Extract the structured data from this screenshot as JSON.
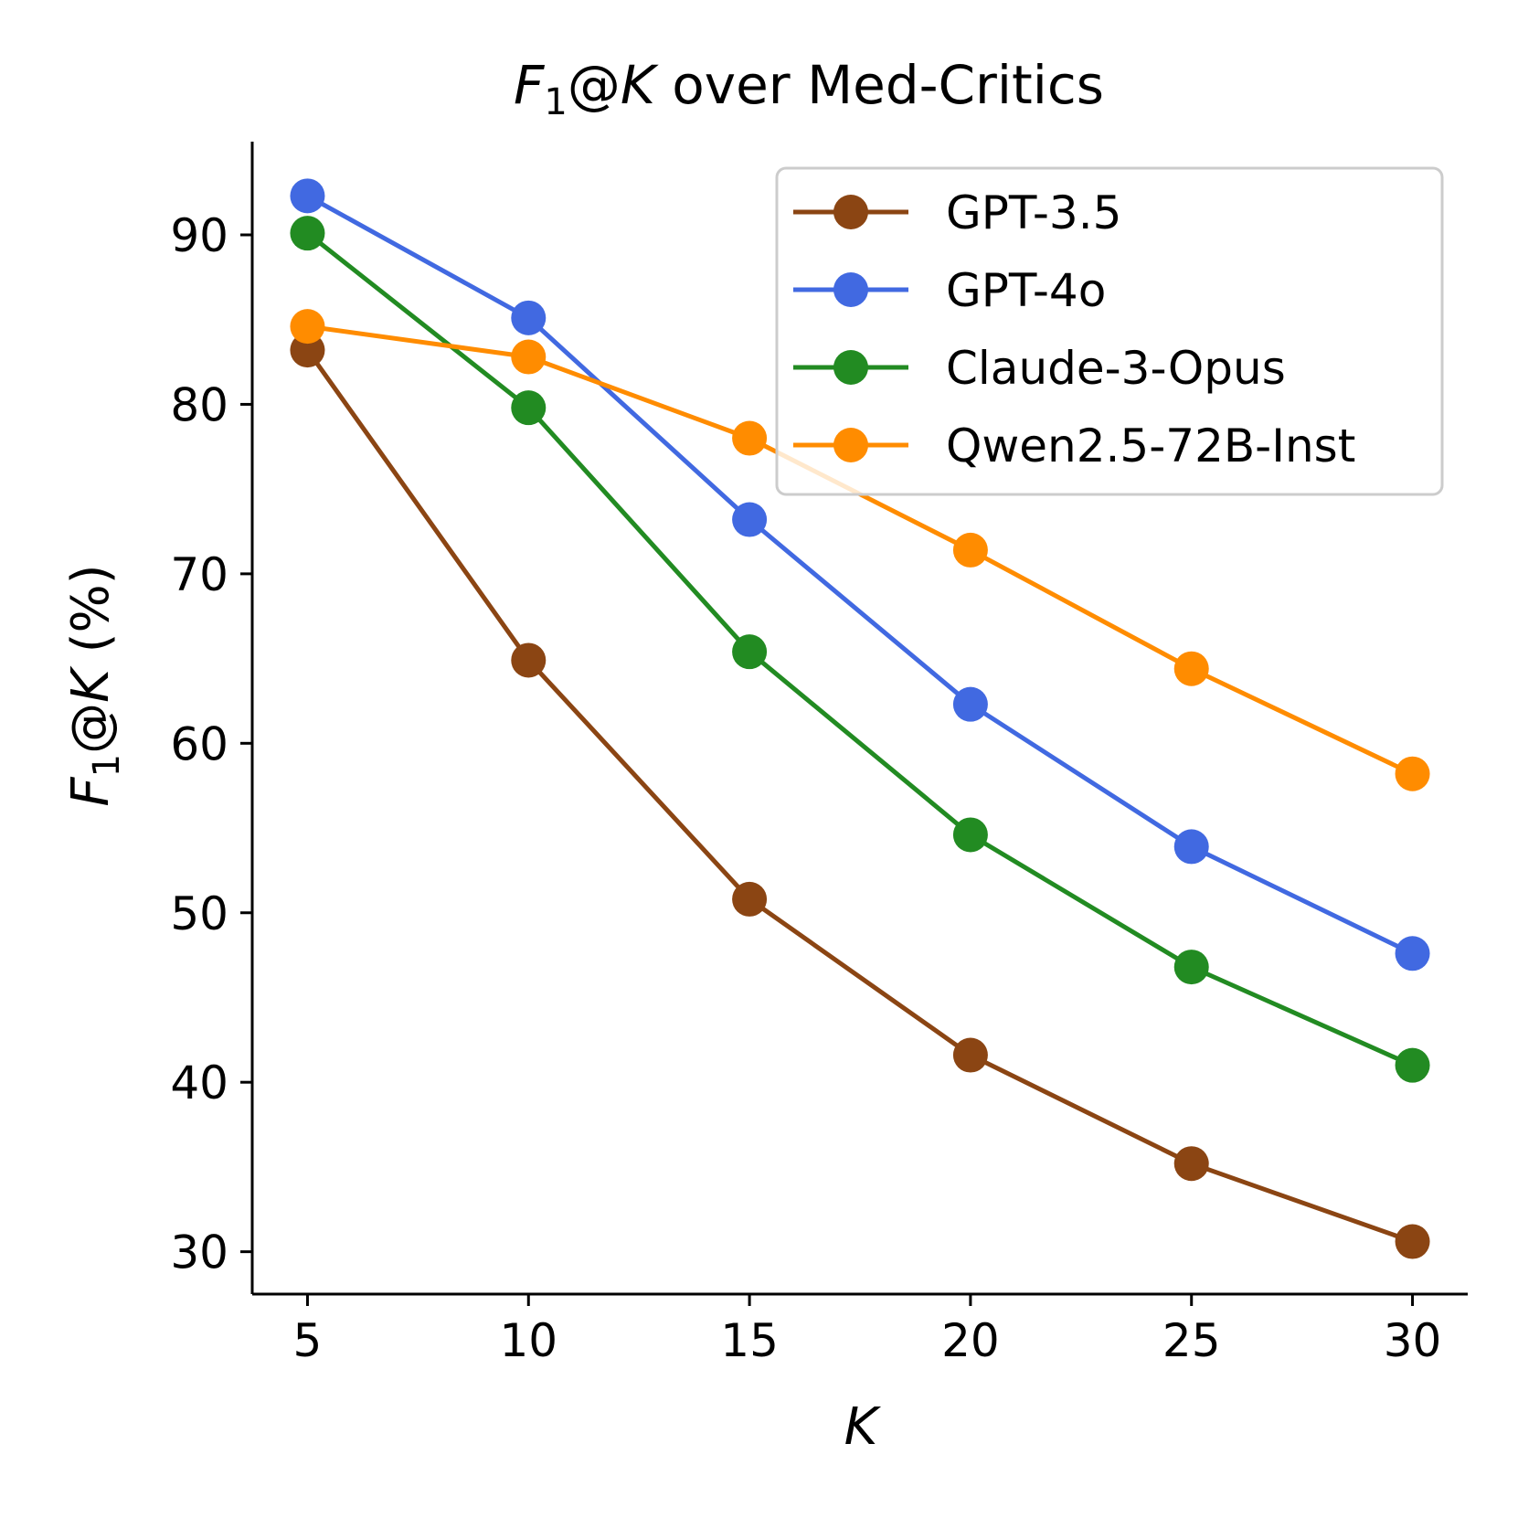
{
  "chart_data": {
    "type": "line",
    "title": {
      "prefix": "F",
      "subscript": "1",
      "at": "@",
      "var": "K",
      "suffix": " over Med-Critics"
    },
    "xlabel": "K",
    "ylabel": {
      "prefix": "F",
      "subscript": "1",
      "at": "@",
      "var": "K",
      "suffix": " (%)"
    },
    "x": [
      5,
      10,
      15,
      20,
      25,
      30
    ],
    "x_tick_labels": [
      "5",
      "10",
      "15",
      "20",
      "25",
      "30"
    ],
    "y_ticks": [
      30,
      40,
      50,
      60,
      70,
      80,
      90
    ],
    "y_tick_labels": [
      "30",
      "40",
      "50",
      "60",
      "70",
      "80",
      "90"
    ],
    "xlim": [
      3.75,
      31.25
    ],
    "ylim": [
      27.5,
      95.5
    ],
    "grid": false,
    "legend_position": "top-right",
    "series": [
      {
        "name": "GPT-3.5",
        "color": "#8B4513",
        "values": [
          83.2,
          64.9,
          50.8,
          41.6,
          35.2,
          30.6
        ]
      },
      {
        "name": "GPT-4o",
        "color": "#4169E1",
        "values": [
          92.3,
          85.1,
          73.2,
          62.3,
          53.9,
          47.6
        ]
      },
      {
        "name": "Claude-3-Opus",
        "color": "#228B22",
        "values": [
          90.1,
          79.8,
          65.4,
          54.6,
          46.8,
          41.0
        ]
      },
      {
        "name": "Qwen2.5-72B-Inst",
        "color": "#FF8C00",
        "values": [
          84.6,
          82.8,
          78.0,
          71.4,
          64.4,
          58.2
        ]
      }
    ]
  }
}
